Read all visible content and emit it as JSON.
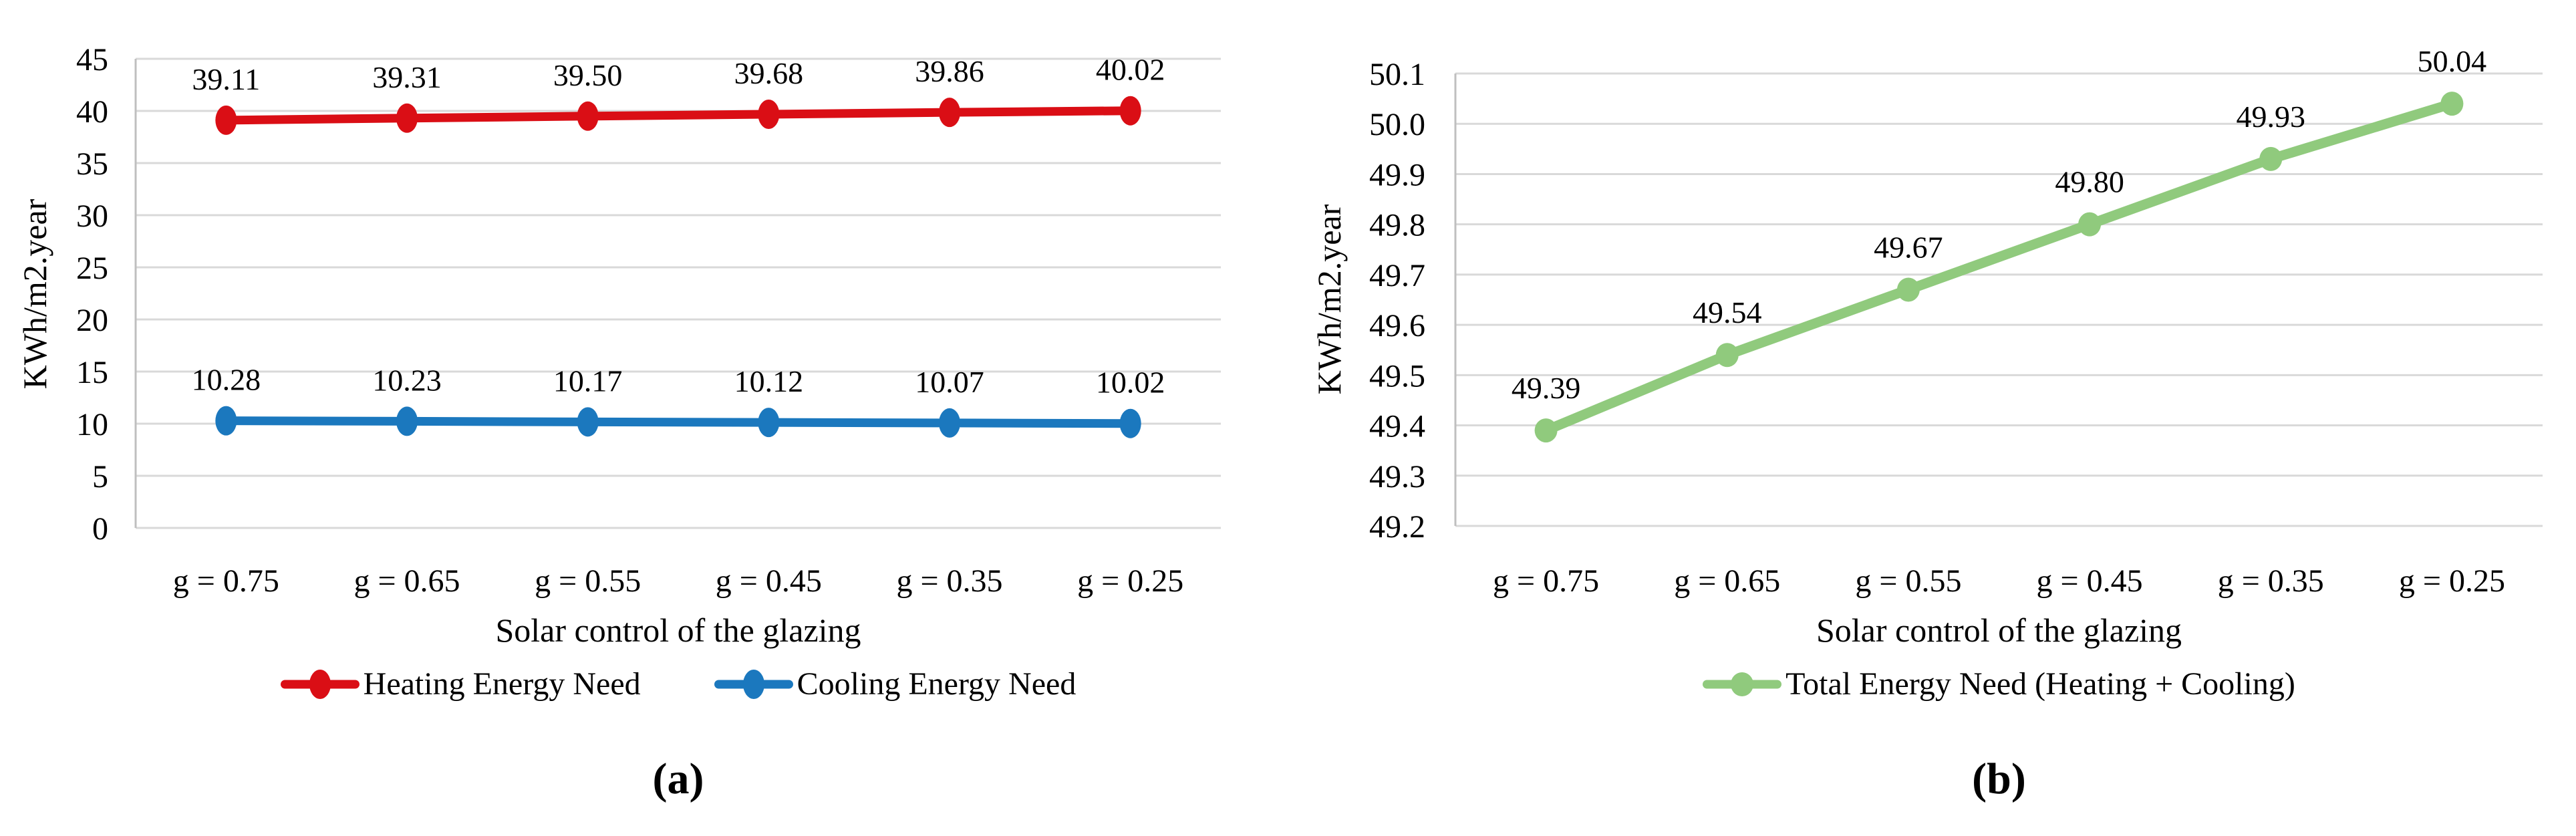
{
  "colors": {
    "gridline": "#d9d9d9",
    "axis_line": "#bfbfbf",
    "text": "#000000",
    "heating_red": "#da0e15",
    "cooling_blue": "#1b78be",
    "total_green": "#90ca7d",
    "background": "#ffffff"
  },
  "chart_data": [
    {
      "panel": "a",
      "type": "line",
      "categories": [
        "g = 0.75",
        "g = 0.65",
        "g = 0.55",
        "g = 0.45",
        "g = 0.35",
        "g = 0.25"
      ],
      "series": [
        {
          "name": "Heating Energy Need",
          "color": "#da0e15",
          "values": [
            39.11,
            39.31,
            39.5,
            39.68,
            39.86,
            40.02
          ],
          "labels": [
            "39.11",
            "39.31",
            "39.50",
            "39.68",
            "39.86",
            "40.02"
          ]
        },
        {
          "name": "Cooling Energy Need",
          "color": "#1b78be",
          "values": [
            10.28,
            10.23,
            10.17,
            10.12,
            10.07,
            10.02
          ],
          "labels": [
            "10.28",
            "10.23",
            "10.17",
            "10.12",
            "10.07",
            "10.02"
          ]
        }
      ],
      "xlabel": "Solar control of the glazing",
      "ylabel": "KWh/m2.year",
      "ylim": [
        0,
        45
      ],
      "ytick_step": 5,
      "yticks": [
        "0",
        "5",
        "10",
        "15",
        "20",
        "25",
        "30",
        "35",
        "40",
        "45"
      ],
      "grid": true,
      "legend_position": "bottom",
      "caption": "(a)"
    },
    {
      "panel": "b",
      "type": "line",
      "categories": [
        "g = 0.75",
        "g = 0.65",
        "g = 0.55",
        "g = 0.45",
        "g = 0.35",
        "g = 0.25"
      ],
      "series": [
        {
          "name": "Total Energy Need (Heating + Cooling)",
          "color": "#90ca7d",
          "values": [
            49.39,
            49.54,
            49.67,
            49.8,
            49.93,
            50.04
          ],
          "labels": [
            "49.39",
            "49.54",
            "49.67",
            "49.80",
            "49.93",
            "50.04"
          ]
        }
      ],
      "xlabel": "Solar control of the glazing",
      "ylabel": "KWh/m2.year",
      "ylim": [
        49.2,
        50.1
      ],
      "ytick_step": 0.1,
      "yticks": [
        "49.2",
        "49.3",
        "49.4",
        "49.5",
        "49.6",
        "49.7",
        "49.8",
        "49.9",
        "50.0",
        "50.1"
      ],
      "grid": true,
      "legend_position": "bottom",
      "caption": "(b)"
    }
  ]
}
